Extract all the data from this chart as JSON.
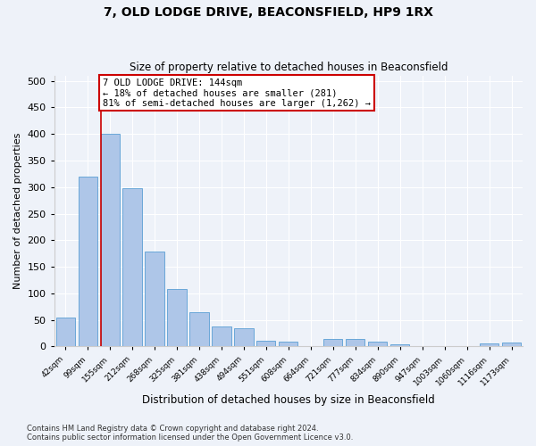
{
  "title": "7, OLD LODGE DRIVE, BEACONSFIELD, HP9 1RX",
  "subtitle": "Size of property relative to detached houses in Beaconsfield",
  "xlabel": "Distribution of detached houses by size in Beaconsfield",
  "ylabel": "Number of detached properties",
  "footnote1": "Contains HM Land Registry data © Crown copyright and database right 2024.",
  "footnote2": "Contains public sector information licensed under the Open Government Licence v3.0.",
  "categories": [
    "42sqm",
    "99sqm",
    "155sqm",
    "212sqm",
    "268sqm",
    "325sqm",
    "381sqm",
    "438sqm",
    "494sqm",
    "551sqm",
    "608sqm",
    "664sqm",
    "721sqm",
    "777sqm",
    "834sqm",
    "890sqm",
    "947sqm",
    "1003sqm",
    "1060sqm",
    "1116sqm",
    "1173sqm"
  ],
  "values": [
    54,
    320,
    400,
    297,
    178,
    108,
    65,
    38,
    35,
    11,
    10,
    0,
    15,
    15,
    9,
    5,
    0,
    0,
    0,
    6,
    7
  ],
  "bar_color": "#aec6e8",
  "bar_edge_color": "#5a9fd4",
  "property_line_label": "7 OLD LODGE DRIVE: 144sqm",
  "annotation_line1": "← 18% of detached houses are smaller (281)",
  "annotation_line2": "81% of semi-detached houses are larger (1,262) →",
  "annotation_box_color": "#cc0000",
  "ylim": [
    0,
    510
  ],
  "yticks": [
    0,
    50,
    100,
    150,
    200,
    250,
    300,
    350,
    400,
    450,
    500
  ],
  "background_color": "#eef2f9",
  "grid_color": "#ffffff"
}
